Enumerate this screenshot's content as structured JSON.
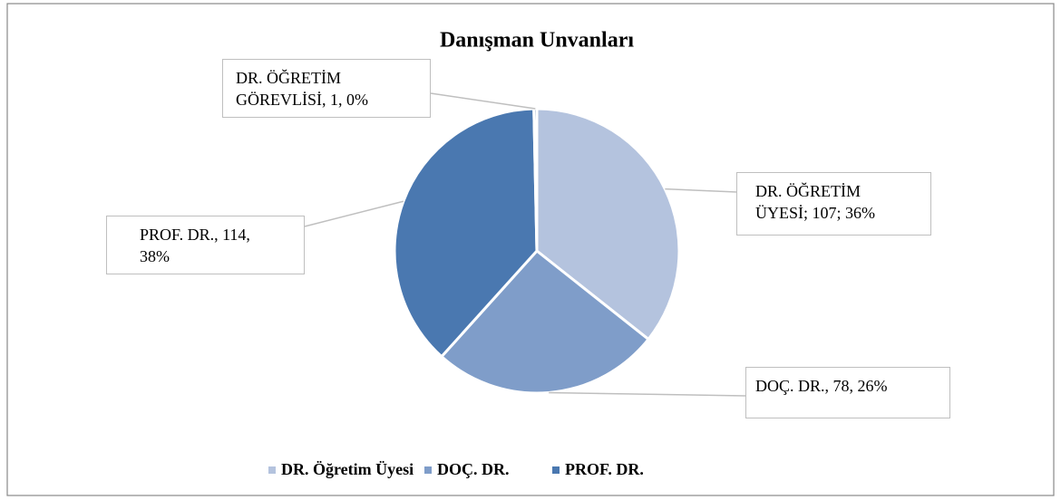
{
  "chart_data": {
    "type": "pie",
    "title": "Danışman Unvanları",
    "values": [
      107,
      78,
      114,
      1
    ],
    "value_labels": [
      "DR. ÖĞRETİM ÜYESİ; 107; 36%",
      "DOÇ. DR., 78, 26%",
      "PROF. DR., 114, 38%",
      "DR. ÖĞRETİM GÖREVLİSİ, 1, 0%"
    ],
    "colors": [
      "#b4c3de",
      "#7f9dc9",
      "#4a78b0",
      "#2f5a8e"
    ],
    "legend": [
      "DR. Öğretim Üyesi",
      "DOÇ. DR.",
      "PROF. DR."
    ],
    "legend_position": "bottom"
  }
}
